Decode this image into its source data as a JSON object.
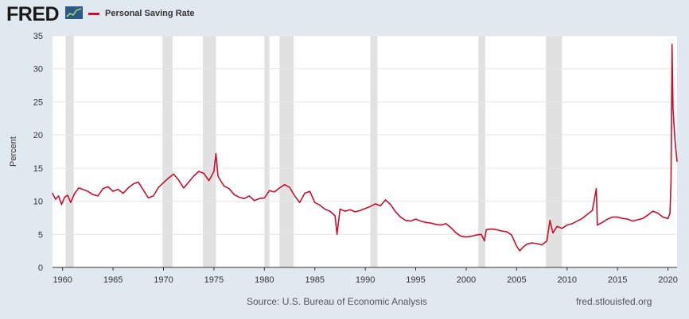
{
  "header": {
    "logo_text": "FRED",
    "logo_icon": "fred-chart-icon",
    "legend_label": "Personal Saving Rate"
  },
  "footer": {
    "source": "Source: U.S. Bureau of Economic Analysis",
    "url": "fred.stlouisfed.org"
  },
  "colors": {
    "series": "#c8102e",
    "recession": "#e1e1e1",
    "background": "#e1e9f0",
    "plot": "#ffffff"
  },
  "chart_data": {
    "type": "line",
    "title": "",
    "xlabel": "",
    "ylabel": "Percent",
    "xlim": [
      1959.0,
      2020.9
    ],
    "ylim": [
      0,
      35
    ],
    "yticks": [
      0,
      5,
      10,
      15,
      20,
      25,
      30,
      35
    ],
    "xticks": [
      1960,
      1965,
      1970,
      1975,
      1980,
      1985,
      1990,
      1995,
      2000,
      2005,
      2010,
      2015,
      2020
    ],
    "grid": "horizontal",
    "legend": "top-left",
    "recessions": [
      [
        1960.3,
        1961.1
      ],
      [
        1969.9,
        1970.9
      ],
      [
        1973.9,
        1975.2
      ],
      [
        1980.0,
        1980.5
      ],
      [
        1981.5,
        1982.9
      ],
      [
        1990.5,
        1991.2
      ],
      [
        2001.2,
        2001.9
      ],
      [
        2007.9,
        2009.5
      ]
    ],
    "series": [
      {
        "name": "Personal Saving Rate",
        "x": [
          1959.0,
          1959.3,
          1959.6,
          1959.9,
          1960.2,
          1960.5,
          1960.8,
          1961.2,
          1961.6,
          1962.0,
          1962.5,
          1963.0,
          1963.5,
          1964.0,
          1964.5,
          1965.0,
          1965.5,
          1966.0,
          1966.5,
          1967.0,
          1967.5,
          1968.0,
          1968.5,
          1969.0,
          1969.5,
          1970.0,
          1970.5,
          1971.0,
          1971.5,
          1972.0,
          1972.5,
          1973.0,
          1973.5,
          1974.0,
          1974.5,
          1975.0,
          1975.2,
          1975.4,
          1975.7,
          1976.0,
          1976.5,
          1977.0,
          1977.5,
          1978.0,
          1978.5,
          1979.0,
          1979.5,
          1980.0,
          1980.5,
          1981.0,
          1981.5,
          1982.0,
          1982.5,
          1983.0,
          1983.5,
          1984.0,
          1984.5,
          1985.0,
          1985.5,
          1986.0,
          1986.5,
          1987.0,
          1987.2,
          1987.5,
          1988.0,
          1988.5,
          1989.0,
          1989.5,
          1990.0,
          1990.5,
          1991.0,
          1991.5,
          1992.0,
          1992.5,
          1993.0,
          1993.5,
          1994.0,
          1994.5,
          1995.0,
          1995.5,
          1996.0,
          1996.5,
          1997.0,
          1997.5,
          1998.0,
          1998.5,
          1999.0,
          1999.5,
          2000.0,
          2000.5,
          2001.0,
          2001.5,
          2001.8,
          2002.0,
          2002.5,
          2003.0,
          2003.5,
          2004.0,
          2004.5,
          2005.0,
          2005.3,
          2005.6,
          2006.0,
          2006.5,
          2007.0,
          2007.5,
          2008.0,
          2008.3,
          2008.6,
          2009.0,
          2009.5,
          2010.0,
          2010.5,
          2011.0,
          2011.5,
          2012.0,
          2012.5,
          2012.9,
          2013.0,
          2013.5,
          2014.0,
          2014.5,
          2015.0,
          2015.5,
          2016.0,
          2016.5,
          2017.0,
          2017.5,
          2018.0,
          2018.5,
          2019.0,
          2019.5,
          2020.0,
          2020.2,
          2020.3,
          2020.4,
          2020.5,
          2020.7,
          2020.9
        ],
        "values": [
          11.2,
          10.3,
          10.8,
          9.5,
          10.6,
          10.9,
          9.8,
          11.2,
          12.0,
          11.8,
          11.5,
          11.0,
          10.8,
          11.9,
          12.2,
          11.5,
          11.8,
          11.2,
          12.0,
          12.6,
          12.9,
          11.7,
          10.5,
          10.8,
          12.1,
          12.8,
          13.5,
          14.1,
          13.2,
          12.0,
          12.9,
          13.8,
          14.5,
          14.2,
          13.1,
          14.5,
          17.2,
          13.8,
          13.0,
          12.3,
          11.9,
          11.0,
          10.6,
          10.4,
          10.8,
          10.1,
          10.4,
          10.5,
          11.6,
          11.4,
          12.0,
          12.5,
          12.1,
          10.8,
          9.8,
          11.2,
          11.5,
          9.8,
          9.4,
          8.8,
          8.5,
          7.8,
          5.0,
          8.8,
          8.5,
          8.7,
          8.4,
          8.6,
          8.9,
          9.2,
          9.6,
          9.3,
          10.2,
          9.5,
          8.4,
          7.6,
          7.1,
          7.0,
          7.3,
          7.0,
          6.8,
          6.7,
          6.5,
          6.4,
          6.6,
          6.0,
          5.2,
          4.7,
          4.6,
          4.7,
          4.9,
          5.0,
          4.0,
          5.7,
          5.8,
          5.7,
          5.5,
          5.4,
          4.9,
          3.2,
          2.5,
          3.0,
          3.5,
          3.7,
          3.6,
          3.4,
          4.0,
          7.1,
          5.2,
          6.2,
          5.9,
          6.4,
          6.6,
          7.0,
          7.4,
          8.0,
          8.6,
          11.9,
          6.4,
          6.8,
          7.3,
          7.6,
          7.6,
          7.4,
          7.3,
          7.0,
          7.2,
          7.4,
          7.9,
          8.5,
          8.2,
          7.6,
          7.4,
          8.2,
          13.0,
          33.7,
          24.0,
          19.0,
          16.0
        ]
      }
    ]
  }
}
